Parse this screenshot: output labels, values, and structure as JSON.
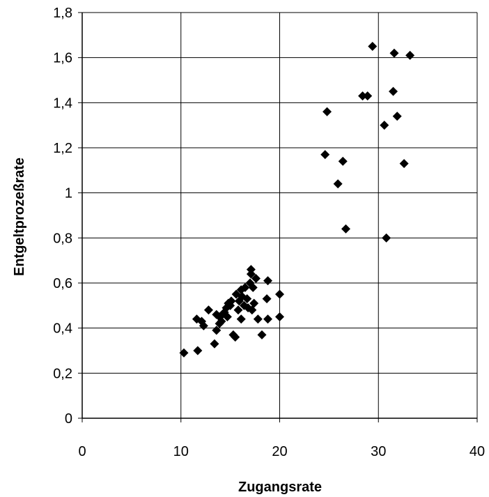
{
  "chart_data": {
    "type": "scatter",
    "xlabel": "Zugangsrate",
    "ylabel": "Entgeltprozeßrate",
    "xlim": [
      0,
      40
    ],
    "ylim": [
      0,
      1.8
    ],
    "x_ticks": [
      0,
      10,
      20,
      30,
      40
    ],
    "y_ticks": [
      0,
      0.2,
      0.4,
      0.6,
      0.8,
      1,
      1.2,
      1.4,
      1.6,
      1.8
    ],
    "x_tick_labels": [
      "0",
      "10",
      "20",
      "30",
      "40"
    ],
    "y_tick_labels": [
      "0",
      "0,2",
      "0,4",
      "0,6",
      "0,8",
      "1",
      "1,2",
      "1,4",
      "1,6",
      "1,8"
    ],
    "grid": true,
    "marker": "diamond",
    "marker_color": "#000000",
    "series": [
      {
        "points": [
          [
            10.3,
            0.29
          ],
          [
            11.7,
            0.3
          ],
          [
            11.6,
            0.44
          ],
          [
            12.1,
            0.43
          ],
          [
            12.3,
            0.41
          ],
          [
            12.8,
            0.48
          ],
          [
            13.4,
            0.33
          ],
          [
            13.6,
            0.39
          ],
          [
            13.6,
            0.46
          ],
          [
            13.9,
            0.42
          ],
          [
            13.9,
            0.45
          ],
          [
            14.1,
            0.43
          ],
          [
            14.2,
            0.46
          ],
          [
            14.4,
            0.47
          ],
          [
            14.6,
            0.49
          ],
          [
            14.7,
            0.45
          ],
          [
            14.8,
            0.51
          ],
          [
            15.0,
            0.5
          ],
          [
            15.1,
            0.52
          ],
          [
            15.3,
            0.37
          ],
          [
            15.5,
            0.36
          ],
          [
            15.6,
            0.55
          ],
          [
            15.8,
            0.48
          ],
          [
            15.9,
            0.52
          ],
          [
            16.1,
            0.44
          ],
          [
            16.1,
            0.57
          ],
          [
            16.2,
            0.54
          ],
          [
            16.4,
            0.5
          ],
          [
            16.5,
            0.58
          ],
          [
            16.7,
            0.53
          ],
          [
            16.8,
            0.49
          ],
          [
            17.0,
            0.6
          ],
          [
            17.1,
            0.64
          ],
          [
            17.1,
            0.66
          ],
          [
            17.2,
            0.48
          ],
          [
            17.3,
            0.58
          ],
          [
            17.4,
            0.51
          ],
          [
            17.6,
            0.62
          ],
          [
            17.8,
            0.44
          ],
          [
            18.2,
            0.37
          ],
          [
            18.7,
            0.53
          ],
          [
            18.8,
            0.61
          ],
          [
            18.8,
            0.44
          ],
          [
            20.0,
            0.55
          ],
          [
            20.0,
            0.45
          ],
          [
            24.6,
            1.17
          ],
          [
            24.8,
            1.36
          ],
          [
            25.9,
            1.04
          ],
          [
            26.4,
            1.14
          ],
          [
            26.7,
            0.84
          ],
          [
            28.4,
            1.43
          ],
          [
            28.9,
            1.43
          ],
          [
            29.4,
            1.65
          ],
          [
            30.6,
            1.3
          ],
          [
            30.8,
            0.8
          ],
          [
            31.5,
            1.45
          ],
          [
            31.6,
            1.62
          ],
          [
            31.9,
            1.34
          ],
          [
            32.6,
            1.13
          ],
          [
            33.2,
            1.61
          ]
        ]
      }
    ]
  }
}
